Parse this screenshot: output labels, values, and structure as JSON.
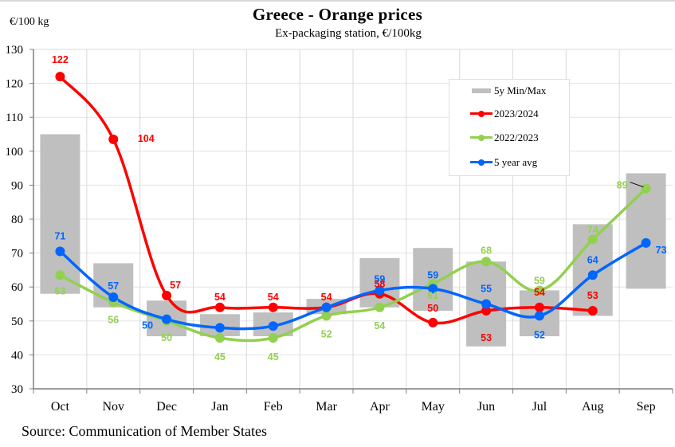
{
  "chart_data": {
    "type": "line",
    "title": "Greece  -  Orange prices",
    "subtitle": "Ex-packaging  station, €/100kg",
    "ylabel": "€/100 kg",
    "xlabel": "",
    "source": "Source: Communication of Member States",
    "ylim": [
      30,
      130
    ],
    "yticks": [
      30,
      40,
      50,
      60,
      70,
      80,
      90,
      100,
      110,
      120,
      130
    ],
    "grid": true,
    "legend_position": "top-right",
    "categories": [
      "Oct",
      "Nov",
      "Dec",
      "Jan",
      "Feb",
      "Mar",
      "Apr",
      "May",
      "Jun",
      "Jul",
      "Aug",
      "Sep"
    ],
    "range_band": {
      "name": "5y Min/Max",
      "color": "#bfbfbf",
      "min": [
        58,
        54,
        45.5,
        45.5,
        45.5,
        52,
        54,
        53,
        42.5,
        45.5,
        51.5,
        59.5
      ],
      "max": [
        105,
        67,
        56,
        52,
        52.5,
        56.5,
        68.5,
        71.5,
        67.5,
        59,
        78.5,
        93.5
      ]
    },
    "series": [
      {
        "name": "2023/2024",
        "color": "#ff0000",
        "values": [
          122,
          103.5,
          57.5,
          54,
          54,
          54,
          58,
          49.5,
          53,
          54,
          53,
          null
        ],
        "labels": [
          "122",
          "104",
          "57",
          "54",
          "54",
          "54",
          "58",
          "50",
          "53",
          "54",
          "53",
          null
        ]
      },
      {
        "name": "2022/2023",
        "color": "#92d050",
        "values": [
          63.5,
          55.5,
          50,
          45,
          45,
          51.5,
          54,
          61,
          67.5,
          59,
          74,
          89
        ],
        "labels": [
          "63",
          "56",
          "50",
          "45",
          "45",
          "52",
          "54",
          "61",
          "68",
          "59",
          "74",
          "89"
        ]
      },
      {
        "name": "5 year avg",
        "color": "#0066ff",
        "values": [
          70.5,
          57,
          50.5,
          48,
          48.5,
          54,
          59,
          59.5,
          55,
          51.5,
          63.5,
          73
        ],
        "labels": [
          "71",
          "57",
          "50",
          "",
          "",
          "",
          "59",
          "59",
          "55",
          "52",
          "64",
          "73"
        ]
      }
    ]
  },
  "legend": {
    "items": [
      "5y Min/Max",
      "2023/2024",
      "2022/2023",
      "5 year avg"
    ]
  }
}
